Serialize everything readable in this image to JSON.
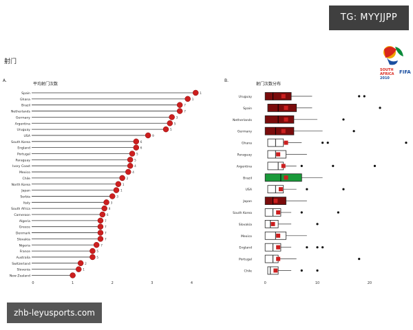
{
  "header": {
    "tag_text": "TG: MYYJJPP",
    "page_title": "射门"
  },
  "watermark": {
    "text": "zhb-leyusports.com"
  },
  "logo": {
    "name": "south-africa-2010-fifa-world-cup-logo",
    "lines": [
      "SOUTH",
      "AFRICA",
      "2010",
      "FIFA"
    ]
  },
  "colors": {
    "marker_red": "#cc1f1f",
    "dark_red": "#7a0c0c",
    "green": "#1a9a3a",
    "stem": "#333333"
  },
  "chart_data": [
    {
      "type": "lollipop",
      "panel_label": "A.",
      "title": "平均射门次数",
      "xlim": [
        0,
        4.2
      ],
      "xticks": [
        "0",
        "1",
        "2",
        "3",
        "4"
      ],
      "categories": [
        "Spain",
        "Ghana",
        "Brazil",
        "Netherlands",
        "Germany",
        "Argentina",
        "Uruguay",
        "USA",
        "South Korea",
        "England",
        "Portugal",
        "Paraguay",
        "Ivory Coast",
        "Mexico",
        "Chile",
        "North Korea",
        "Japan",
        "Serbia",
        "Italy",
        "South Africa",
        "Cameroon",
        "Algeria",
        "Greece",
        "Denmark",
        "Slovakia",
        "Nigeria",
        "France",
        "Australia",
        "Switzerland",
        "Slovenia",
        "New Zealand"
      ],
      "values": [
        4.1,
        3.9,
        3.7,
        3.7,
        3.5,
        3.45,
        3.35,
        2.9,
        2.6,
        2.6,
        2.5,
        2.45,
        2.45,
        2.4,
        2.25,
        2.15,
        2.1,
        2.0,
        1.85,
        1.8,
        1.75,
        1.7,
        1.7,
        1.7,
        1.7,
        1.6,
        1.5,
        1.5,
        1.2,
        1.15,
        1.0
      ],
      "value_labels": [
        "1",
        "1",
        "7",
        "7",
        "3",
        "5",
        "5",
        "9",
        "6",
        "6",
        "5",
        "5",
        "4",
        "4",
        "2",
        "1",
        "1",
        "3",
        "3",
        "8",
        "6",
        "7",
        "7",
        "7",
        "7",
        "7",
        "5",
        "5",
        "2",
        "1",
        ""
      ]
    },
    {
      "type": "boxplot",
      "panel_label": "B.",
      "title": "射门次数分布",
      "xlim": [
        -2,
        27
      ],
      "xticks": [
        "0",
        "10",
        "20"
      ],
      "categories": [
        "Uruguay",
        "Spain",
        "Netherlands",
        "Germany",
        "Ghana",
        "Paraguay",
        "Argentina",
        "Brazil",
        "USA",
        "Japan",
        "South Korea",
        "Slovakia",
        "Mexico",
        "England",
        "Portugal",
        "Chile"
      ],
      "series": [
        {
          "q1": 0,
          "median": 1.5,
          "q3": 5,
          "whisker_min": 0,
          "whisker_max": 9,
          "mean": 3.5,
          "outliers": [
            18,
            19
          ],
          "fill": "darkred"
        },
        {
          "q1": 0.5,
          "median": 2.5,
          "q3": 6,
          "whisker_min": 0,
          "whisker_max": 9,
          "mean": 4,
          "outliers": [
            22
          ],
          "fill": "darkred"
        },
        {
          "q1": 0,
          "median": 2.5,
          "q3": 5.5,
          "whisker_min": 0,
          "whisker_max": 10,
          "mean": 4,
          "outliers": [
            15
          ],
          "fill": "darkred"
        },
        {
          "q1": 0,
          "median": 2,
          "q3": 5.5,
          "whisker_min": 0,
          "whisker_max": 11,
          "mean": 3.5,
          "outliers": [
            17
          ],
          "fill": "darkred"
        },
        {
          "q1": 0.5,
          "median": 2,
          "q3": 3.5,
          "whisker_min": 0,
          "whisker_max": 7,
          "mean": 4,
          "outliers": [
            11,
            12,
            27
          ],
          "fill": "white"
        },
        {
          "q1": 0.5,
          "median": 2,
          "q3": 4,
          "whisker_min": 0,
          "whisker_max": 8,
          "mean": 2.5,
          "outliers": [],
          "fill": "white"
        },
        {
          "q1": 0.5,
          "median": 2.5,
          "q3": 3.5,
          "whisker_min": 0,
          "whisker_max": 6,
          "mean": 3.5,
          "outliers": [
            7,
            13,
            21
          ],
          "fill": "white"
        },
        {
          "q1": 0,
          "median": 3,
          "q3": 7,
          "whisker_min": 0,
          "whisker_max": 11,
          "mean": 4,
          "outliers": [],
          "fill": "green"
        },
        {
          "q1": 0.5,
          "median": 2,
          "q3": 3.5,
          "whisker_min": 0,
          "whisker_max": 6,
          "mean": 3,
          "outliers": [
            8,
            15
          ],
          "fill": "white"
        },
        {
          "q1": 0,
          "median": 1.5,
          "q3": 4,
          "whisker_min": 0,
          "whisker_max": 8,
          "mean": 2,
          "outliers": [],
          "fill": "darkred"
        },
        {
          "q1": 0,
          "median": 1.5,
          "q3": 3,
          "whisker_min": 0,
          "whisker_max": 5,
          "mean": 2.5,
          "outliers": [
            7,
            14
          ],
          "fill": "white"
        },
        {
          "q1": 0,
          "median": 1,
          "q3": 2.5,
          "whisker_min": 0,
          "whisker_max": 5,
          "mean": 1.5,
          "outliers": [
            10
          ],
          "fill": "white"
        },
        {
          "q1": 0,
          "median": 2,
          "q3": 4,
          "whisker_min": 0,
          "whisker_max": 8,
          "mean": 2.5,
          "outliers": [],
          "fill": "white"
        },
        {
          "q1": 0,
          "median": 1.5,
          "q3": 3,
          "whisker_min": 0,
          "whisker_max": 5,
          "mean": 2.5,
          "outliers": [
            8,
            10,
            11
          ],
          "fill": "white"
        },
        {
          "q1": 0,
          "median": 1.5,
          "q3": 2.5,
          "whisker_min": 0,
          "whisker_max": 6,
          "mean": 2.5,
          "outliers": [
            18
          ],
          "fill": "white"
        },
        {
          "q1": 0.5,
          "median": 1,
          "q3": 2.5,
          "whisker_min": 0,
          "whisker_max": 5,
          "mean": 2,
          "outliers": [
            7,
            10
          ],
          "fill": "white"
        }
      ]
    }
  ]
}
